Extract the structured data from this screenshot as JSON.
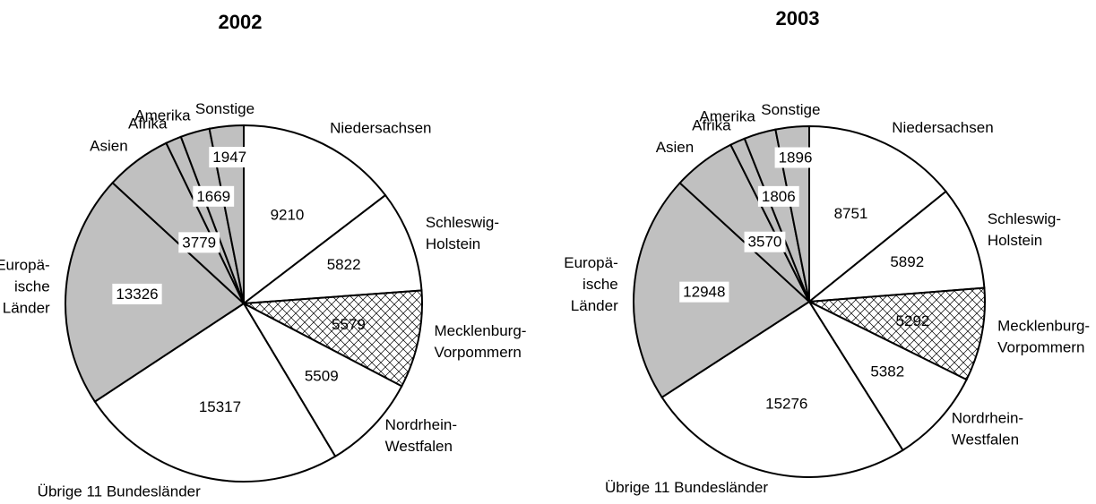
{
  "chart_data": [
    {
      "type": "pie",
      "title": "2002",
      "categories": [
        "Niedersachsen",
        "Schleswig-\nHolstein",
        "Mecklenburg-\nVorpommern",
        "Nordrhein-\nWestfalen",
        "Übrige 11 Bundesländer",
        "Europä-\nische\nLänder",
        "Asien",
        "Afrika",
        "Amerika",
        "Sonstige"
      ],
      "values": [
        9210,
        5822,
        5579,
        5509,
        15317,
        13326,
        3779,
        900,
        1669,
        1947
      ],
      "value_labels": [
        "9210",
        "5822",
        "5579",
        "5509",
        "15317",
        "13326",
        "3779",
        null,
        "1669",
        "1947"
      ],
      "colors": [
        "#ffffff",
        "#ffffff",
        "hatch",
        "#ffffff",
        "#ffffff",
        "#c0c0c0",
        "#c0c0c0",
        "#c0c0c0",
        "#c0c0c0",
        "#c0c0c0"
      ]
    },
    {
      "type": "pie",
      "title": "2003",
      "categories": [
        "Niedersachsen",
        "Schleswig-\nHolstein",
        "Mecklenburg-\nVorpommern",
        "Nordrhein-\nWestfalen",
        "Übrige 11 Bundesländer",
        "Europä-\nische\nLänder",
        "Asien",
        "Afrika",
        "Amerika",
        "Sonstige"
      ],
      "values": [
        8751,
        5892,
        5292,
        5382,
        15276,
        12948,
        3570,
        850,
        1806,
        1896
      ],
      "value_labels": [
        "8751",
        "5892",
        "5292",
        "5382",
        "15276",
        "12948",
        "3570",
        null,
        "1806",
        "1896"
      ],
      "colors": [
        "#ffffff",
        "#ffffff",
        "hatch",
        "#ffffff",
        "#ffffff",
        "#c0c0c0",
        "#c0c0c0",
        "#c0c0c0",
        "#c0c0c0",
        "#c0c0c0"
      ]
    }
  ]
}
